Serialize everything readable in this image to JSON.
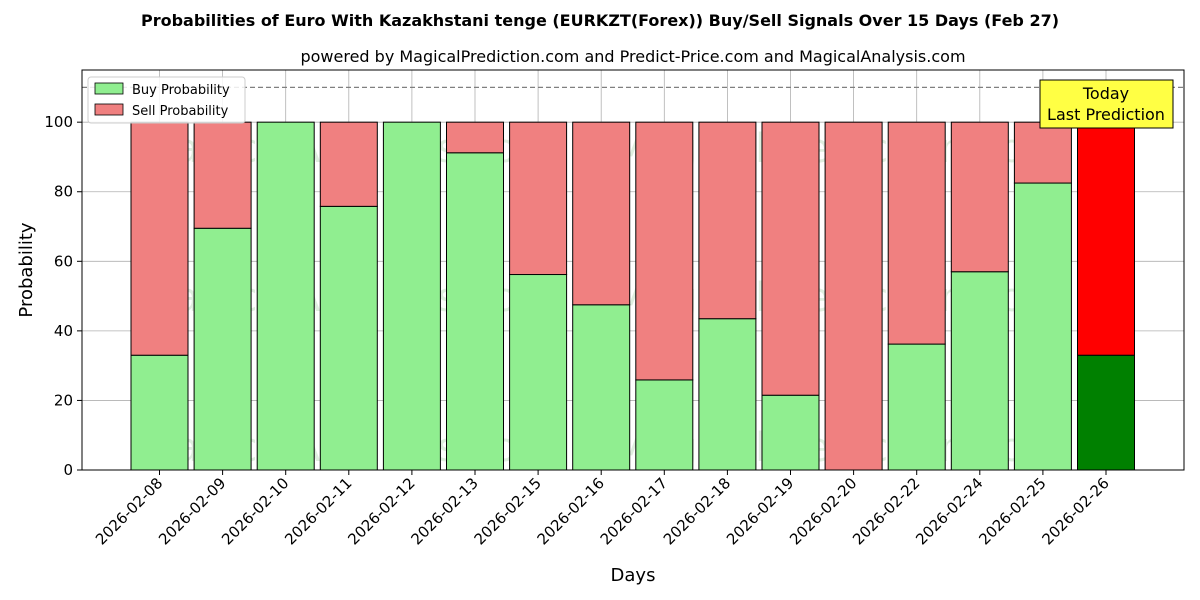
{
  "chart_data": {
    "type": "bar",
    "stacked": true,
    "title": "Probabilities of Euro With Kazakhstani tenge (EURKZT(Forex)) Buy/Sell Signals Over 15 Days (Feb 27)",
    "subtitle": "powered by MagicalPrediction.com and Predict-Price.com and MagicalAnalysis.com",
    "xlabel": "Days",
    "ylabel": "Probability",
    "ylim": [
      0,
      115
    ],
    "yticks": [
      0,
      20,
      40,
      60,
      80,
      100
    ],
    "grid": true,
    "legend_position": "top-left",
    "reference_line": 110,
    "categories": [
      "2026-02-08",
      "2026-02-09",
      "2026-02-10",
      "2026-02-11",
      "2026-02-12",
      "2026-02-13",
      "2026-02-15",
      "2026-02-16",
      "2026-02-17",
      "2026-02-18",
      "2026-02-19",
      "2026-02-20",
      "2026-02-22",
      "2026-02-24",
      "2026-02-25",
      "2026-02-26"
    ],
    "series": [
      {
        "name": "Buy Probability",
        "color": "#90ee90",
        "highlight_color": "#008000",
        "values": [
          33,
          69.5,
          100,
          75.8,
          100,
          91.2,
          56.2,
          47.5,
          25.9,
          43.5,
          21.5,
          0,
          36.2,
          57,
          82.5,
          33
        ]
      },
      {
        "name": "Sell Probability",
        "color": "#f08080",
        "highlight_color": "#ff0000",
        "values": [
          67,
          30.5,
          0,
          24.2,
          0,
          8.8,
          43.8,
          52.5,
          74.1,
          56.5,
          78.5,
          100,
          63.8,
          43,
          17.5,
          67
        ]
      }
    ],
    "highlight_index": 15,
    "annotation": {
      "lines": [
        "Today",
        "Last Prediction"
      ],
      "background": "#ffff44"
    },
    "watermark": [
      "MagicalAnalysis.com",
      "MagicalPrediction.com"
    ]
  }
}
